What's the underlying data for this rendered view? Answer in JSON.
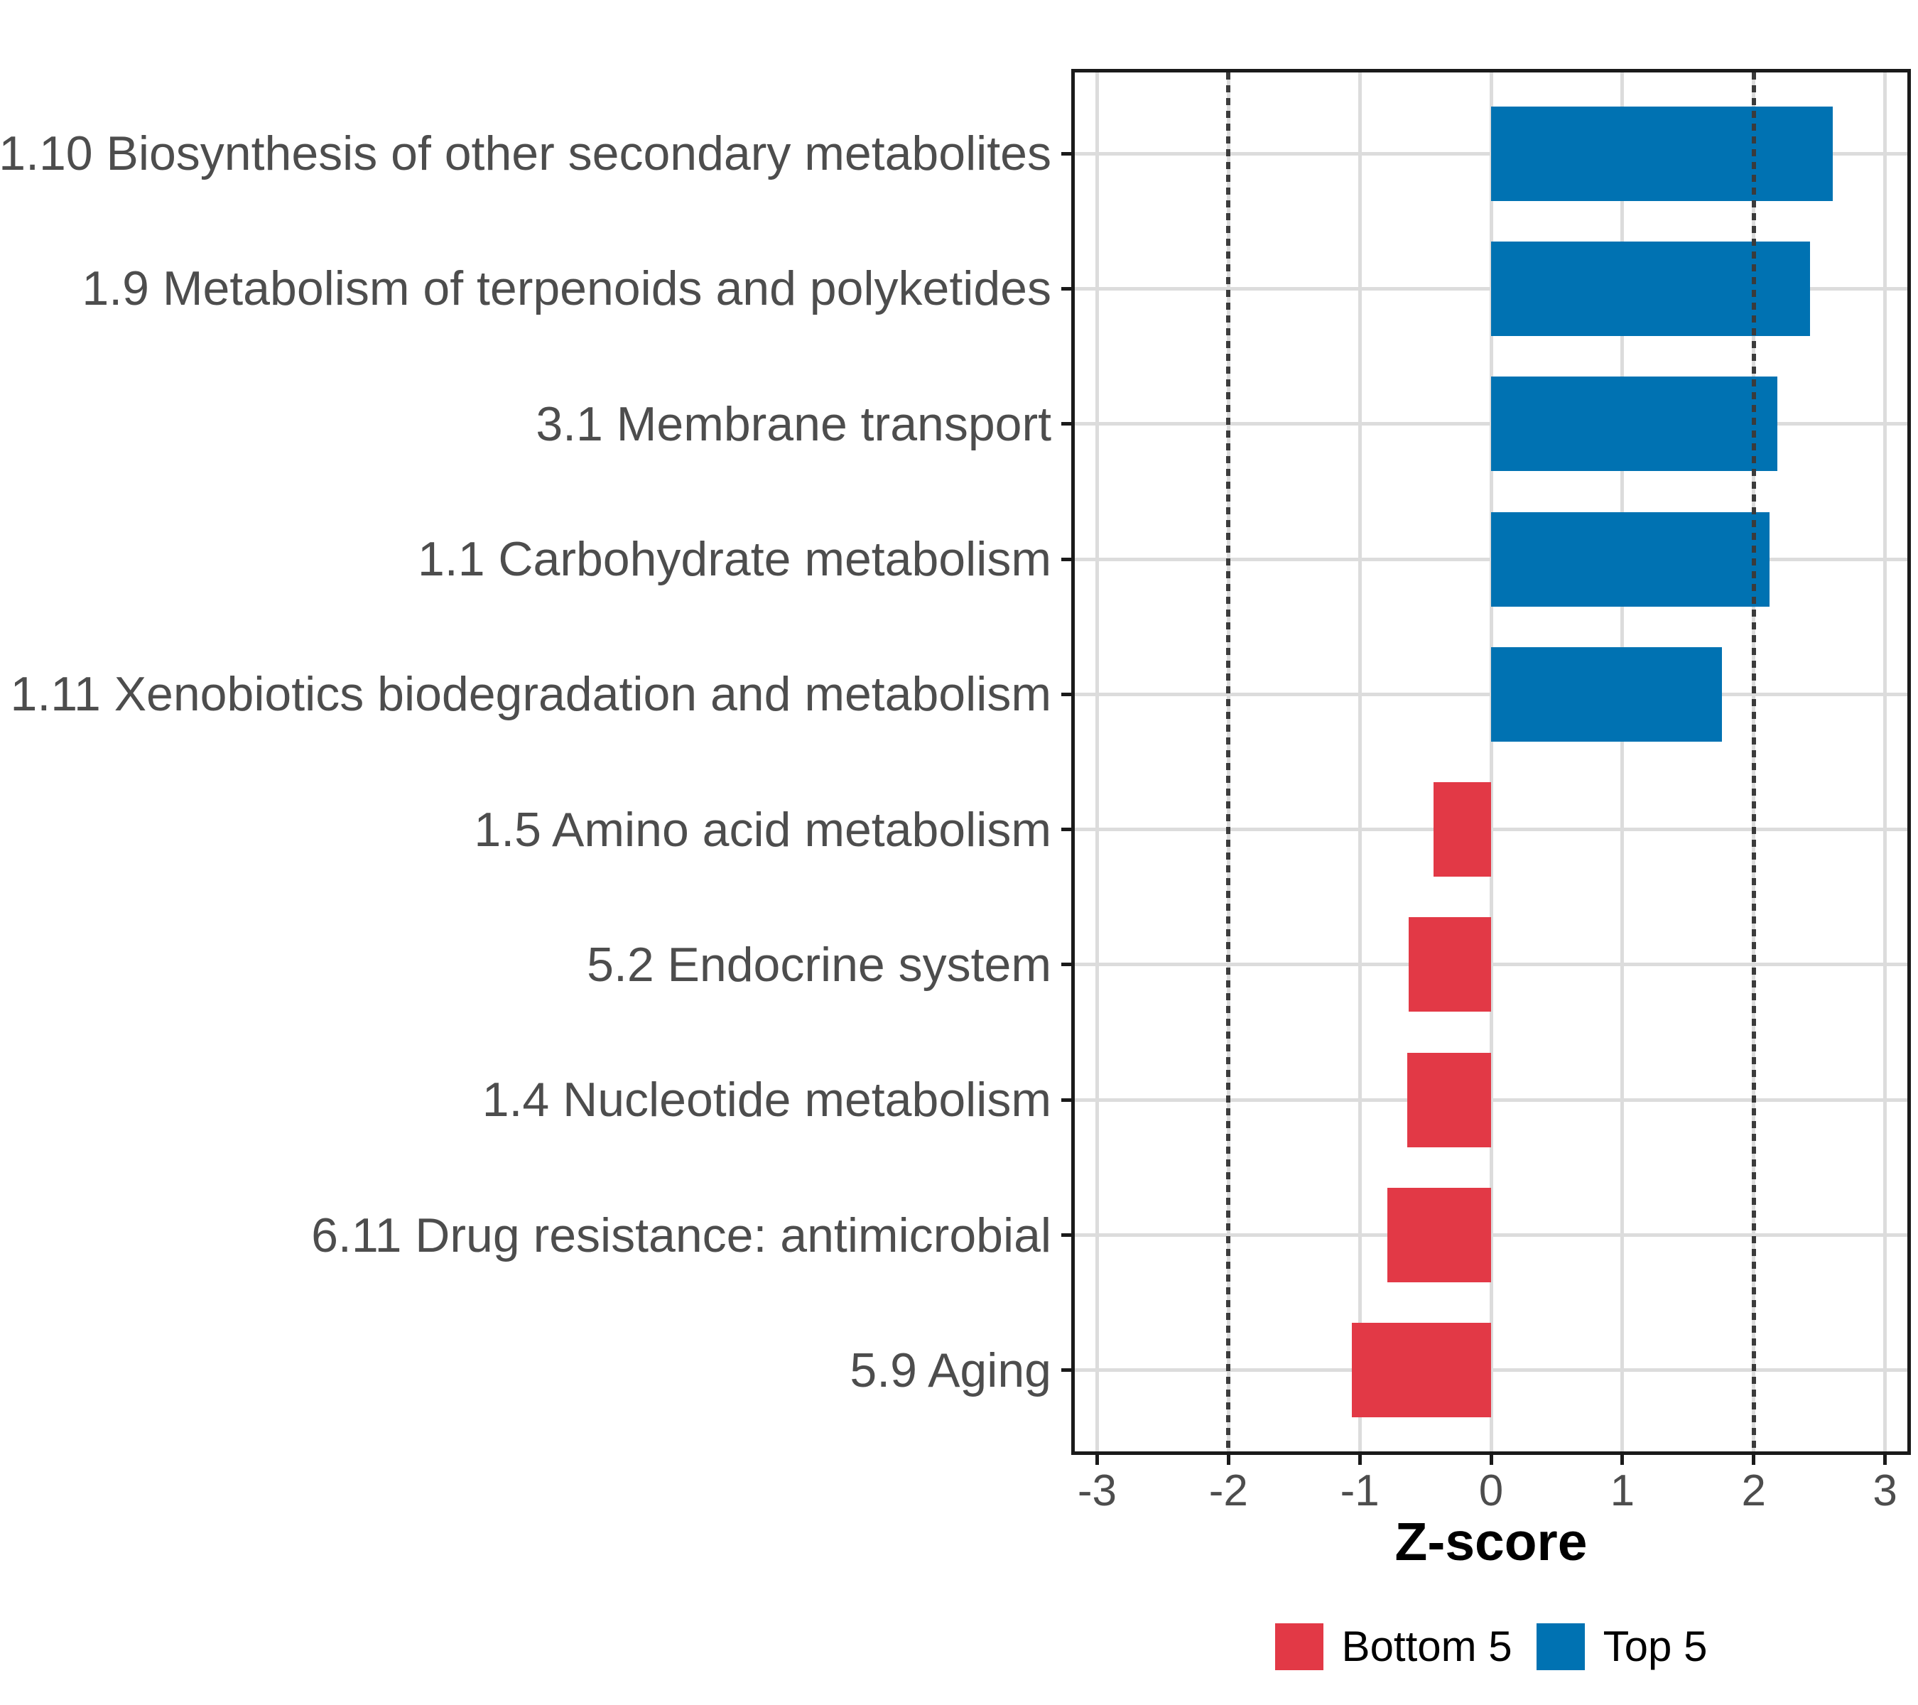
{
  "chart_data": {
    "type": "bar",
    "orientation": "horizontal",
    "title": "",
    "xlabel": "Z-score",
    "ylabel": "",
    "categories": [
      "1.10 Biosynthesis of other secondary metabolites",
      "1.9 Metabolism of terpenoids and polyketides",
      "3.1 Membrane transport",
      "1.1 Carbohydrate metabolism",
      "1.11 Xenobiotics biodegradation and metabolism",
      "1.5 Amino acid metabolism",
      "5.2 Endocrine system",
      "1.4 Nucleotide metabolism",
      "6.11 Drug resistance: antimicrobial",
      "5.9 Aging"
    ],
    "values": [
      2.6,
      2.43,
      2.18,
      2.12,
      1.76,
      -0.44,
      -0.63,
      -0.64,
      -0.79,
      -1.06
    ],
    "groups": [
      "Top 5",
      "Top 5",
      "Top 5",
      "Top 5",
      "Top 5",
      "Bottom 5",
      "Bottom 5",
      "Bottom 5",
      "Bottom 5",
      "Bottom 5"
    ],
    "colors": {
      "Top 5": "#0072B2",
      "Bottom 5": "#E23946"
    },
    "legend": [
      {
        "label": "Bottom 5",
        "color": "#E23946"
      },
      {
        "label": "Top 5",
        "color": "#0072B2"
      }
    ],
    "legend_position": "bottom",
    "x_ticks": [
      -3,
      -2,
      -1,
      0,
      1,
      2,
      3
    ],
    "x_tick_labels": [
      "-3",
      "-2",
      "-1",
      "0",
      "1",
      "2",
      "3"
    ],
    "reference_lines": [
      -2,
      2
    ],
    "reference_line_style": "dotted",
    "xlim": [
      -3.17,
      3.17
    ],
    "grid": "major",
    "panel_border": true
  },
  "styles": {
    "bar_blue": "#0072B2",
    "bar_red": "#E23946",
    "gridline": "#dcdcdc",
    "reference_line": "#3b3b3b",
    "axis_text": "#4d4d4d",
    "title_text": "#000000",
    "panel_border": "#1a1a1a",
    "background": "#ffffff"
  }
}
